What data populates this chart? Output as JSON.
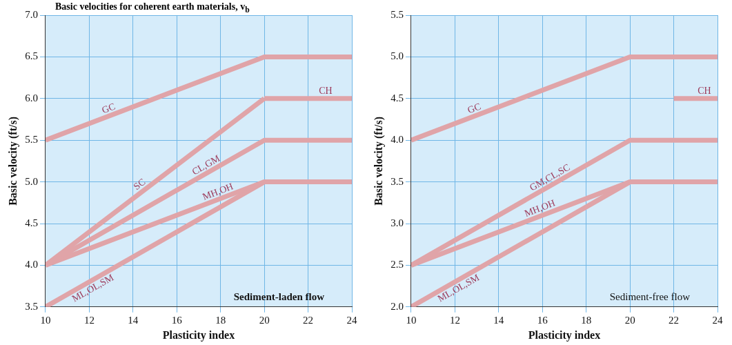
{
  "chart_data": [
    {
      "type": "line",
      "title": "Basic velocities for coherent earth materials, v$_{b}$",
      "xlabel": "Plasticity index",
      "ylabel": "Basic velocity (ft/s)",
      "xlim": [
        10,
        24
      ],
      "xticks": [
        10,
        12,
        14,
        16,
        18,
        20,
        22,
        24
      ],
      "ylim": [
        3.5,
        7.0
      ],
      "yticks": [
        {
          "value": 3.5,
          "label": "3.5"
        },
        {
          "value": 4,
          "label": "4.0"
        },
        {
          "value": 4.5,
          "label": "4.5"
        },
        {
          "value": 5,
          "label": "5.0"
        },
        {
          "value": 5.5,
          "label": "5.5"
        },
        {
          "value": 6,
          "label": "6.0"
        },
        {
          "value": 6.5,
          "label": "6.5"
        },
        {
          "value": 7,
          "label": "7.0"
        }
      ],
      "grid": true,
      "legend": false,
      "marker": "none",
      "line_style": "solid",
      "annotations": [
        "Sediment-laden flow"
      ],
      "series": [
        {
          "name": "GC",
          "color": "#e0a4a8",
          "x": [
            10,
            20,
            24
          ],
          "values": [
            5.5,
            6.5,
            6.5
          ]
        },
        {
          "name": "SC",
          "color": "#e0a4a8",
          "x": [
            10,
            20
          ],
          "values": [
            4.0,
            6.0
          ]
        },
        {
          "name": "CH",
          "color": "#e0a4a8",
          "x": [
            20,
            24
          ],
          "values": [
            6.0,
            6.0
          ]
        },
        {
          "name": "CL,GM",
          "color": "#e0a4a8",
          "x": [
            10,
            20,
            24
          ],
          "values": [
            4.0,
            5.5,
            5.5
          ]
        },
        {
          "name": "MH,OH",
          "color": "#e0a4a8",
          "x": [
            10,
            20,
            24
          ],
          "values": [
            4.0,
            5.0,
            5.0
          ]
        },
        {
          "name": "ML,OL,SM",
          "color": "#e0a4a8",
          "x": [
            10,
            20
          ],
          "values": [
            3.5,
            5.0
          ]
        }
      ]
    },
    {
      "type": "line",
      "xlabel": "Plasticity index",
      "ylabel": "Basic velocity (ft/s)",
      "xlim": [
        10,
        24
      ],
      "xticks": [
        10,
        12,
        14,
        16,
        18,
        20,
        22,
        24
      ],
      "ylim": [
        2.0,
        5.5
      ],
      "yticks": [
        {
          "value": 2,
          "label": "2.0"
        },
        {
          "value": 2.5,
          "label": "2.5"
        },
        {
          "value": 3,
          "label": "3.0"
        },
        {
          "value": 3.5,
          "label": "3.5"
        },
        {
          "value": 4,
          "label": "4.0"
        },
        {
          "value": 4.5,
          "label": "4.5"
        },
        {
          "value": 5,
          "label": "5.0"
        },
        {
          "value": 5.5,
          "label": "5.5"
        }
      ],
      "grid": true,
      "legend": false,
      "marker": "none",
      "line_style": "solid",
      "annotations": [
        "Sediment-free flow"
      ],
      "series": [
        {
          "name": "GC",
          "color": "#e0a4a8",
          "x": [
            10,
            20,
            24
          ],
          "values": [
            4.0,
            5.0,
            5.0
          ]
        },
        {
          "name": "CH",
          "color": "#e0a4a8",
          "x": [
            22,
            24
          ],
          "values": [
            4.5,
            4.5
          ]
        },
        {
          "name": "GM,CL,SC",
          "color": "#e0a4a8",
          "x": [
            10,
            20,
            24
          ],
          "values": [
            2.5,
            4.0,
            4.0
          ]
        },
        {
          "name": "MH,OH",
          "color": "#e0a4a8",
          "x": [
            10,
            20,
            24
          ],
          "values": [
            2.5,
            3.5,
            3.5
          ]
        },
        {
          "name": "ML,OL,SM",
          "color": "#e0a4a8",
          "x": [
            10,
            20
          ],
          "values": [
            2.0,
            3.5
          ]
        }
      ]
    }
  ]
}
